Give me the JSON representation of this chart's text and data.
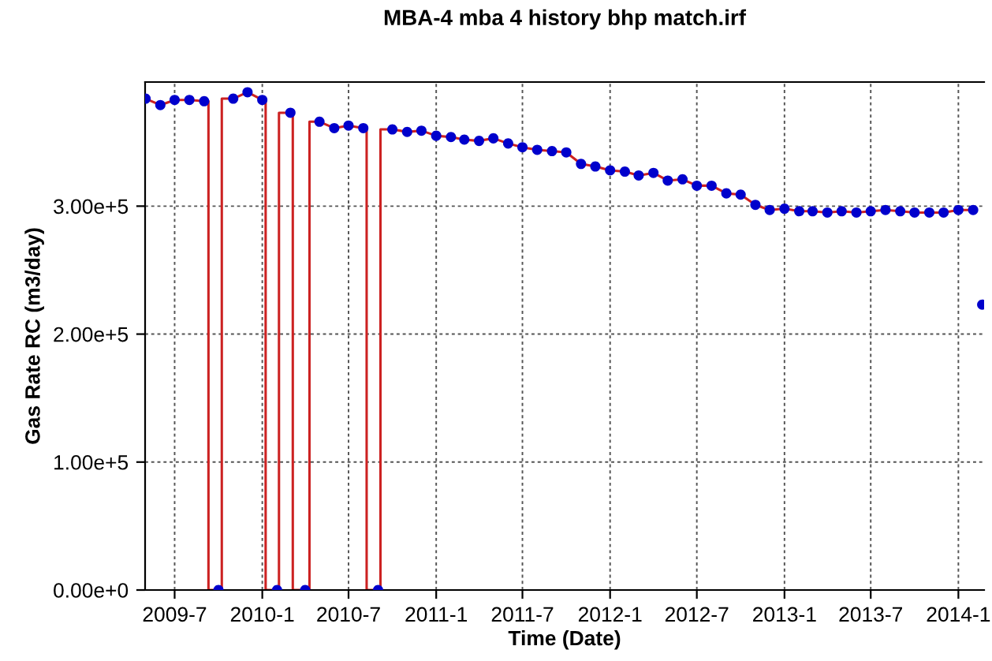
{
  "chart_data": {
    "type": "line",
    "title": "MBA-4 mba 4 history bhp match.irf",
    "xlabel": "Time (Date)",
    "ylabel": "Gas Rate RC (m3/day)",
    "xlim": [
      "2009-04-30",
      "2014-02-24"
    ],
    "ylim": [
      0,
      397000
    ],
    "xticks": [
      {
        "value": "2009-07-01",
        "label": "2009-7"
      },
      {
        "value": "2010-01-01",
        "label": "2010-1"
      },
      {
        "value": "2010-07-01",
        "label": "2010-7"
      },
      {
        "value": "2011-01-01",
        "label": "2011-1"
      },
      {
        "value": "2011-07-01",
        "label": "2011-7"
      },
      {
        "value": "2012-01-01",
        "label": "2012-1"
      },
      {
        "value": "2012-07-01",
        "label": "2012-7"
      },
      {
        "value": "2013-01-01",
        "label": "2013-1"
      },
      {
        "value": "2013-07-01",
        "label": "2013-7"
      },
      {
        "value": "2014-01-01",
        "label": "2014-1"
      }
    ],
    "yticks": [
      {
        "value": 0,
        "label": "0.00e+0"
      },
      {
        "value": 100000,
        "label": "1.00e+5"
      },
      {
        "value": 200000,
        "label": "2.00e+5"
      },
      {
        "value": 300000,
        "label": "3.00e+5"
      }
    ],
    "grid": true,
    "legend": false,
    "series": [
      {
        "type": "line",
        "color": "#cc2222",
        "marker": "none",
        "line_style": "solid",
        "x": [
          "2009-05-01",
          "2009-06-01",
          "2009-07-01",
          "2009-08-01",
          "2009-09-01",
          "2009-09-10",
          "2009-09-10",
          "2009-10-08",
          "2009-10-08",
          "2009-11-01",
          "2009-12-01",
          "2010-01-01",
          "2010-01-08",
          "2010-01-08",
          "2010-02-05",
          "2010-02-05",
          "2010-03-01",
          "2010-03-06",
          "2010-03-06",
          "2010-04-10",
          "2010-04-10",
          "2010-05-01",
          "2010-06-01",
          "2010-07-01",
          "2010-08-01",
          "2010-08-08",
          "2010-08-08",
          "2010-09-06",
          "2010-09-06",
          "2010-10-01",
          "2010-11-01",
          "2010-12-01",
          "2011-01-01",
          "2011-02-01",
          "2011-03-01",
          "2011-04-01",
          "2011-05-01",
          "2011-06-01",
          "2011-07-01",
          "2011-08-01",
          "2011-09-01",
          "2011-10-01",
          "2011-11-01",
          "2011-12-01",
          "2012-01-01",
          "2012-02-01",
          "2012-03-01",
          "2012-04-01",
          "2012-05-01",
          "2012-06-01",
          "2012-07-01",
          "2012-08-01",
          "2012-09-01",
          "2012-10-01",
          "2012-11-01",
          "2012-12-01",
          "2013-01-01",
          "2013-02-01",
          "2013-03-01",
          "2013-04-01",
          "2013-05-01",
          "2013-06-01",
          "2013-07-01",
          "2013-08-01",
          "2013-09-01",
          "2013-10-01",
          "2013-11-01",
          "2013-12-01",
          "2014-01-01",
          "2014-02-01"
        ],
        "values": [
          384000,
          379000,
          383000,
          383000,
          382000,
          382000,
          0,
          0,
          384000,
          384000,
          389000,
          383000,
          383000,
          0,
          0,
          373000,
          373000,
          373000,
          0,
          0,
          366000,
          366000,
          361000,
          363000,
          361000,
          361000,
          0,
          0,
          360000,
          360000,
          358000,
          359000,
          355000,
          354000,
          352000,
          351000,
          353000,
          349000,
          346000,
          344000,
          343000,
          342000,
          333000,
          331000,
          328000,
          327000,
          324000,
          326000,
          320000,
          321000,
          316000,
          316000,
          310000,
          309000,
          301000,
          297000,
          298000,
          296000,
          296000,
          295000,
          296000,
          295000,
          296000,
          297000,
          296000,
          295000,
          295000,
          295000,
          297000,
          297000
        ]
      },
      {
        "type": "scatter",
        "color": "#0000cc",
        "marker": "circle",
        "x": [
          "2009-05-01",
          "2009-06-01",
          "2009-07-01",
          "2009-08-01",
          "2009-09-01",
          "2009-10-01",
          "2009-11-01",
          "2009-12-01",
          "2010-01-01",
          "2010-02-01",
          "2010-03-01",
          "2010-04-01",
          "2010-05-01",
          "2010-06-01",
          "2010-07-01",
          "2010-08-01",
          "2010-09-01",
          "2010-10-01",
          "2010-11-01",
          "2010-12-01",
          "2011-01-01",
          "2011-02-01",
          "2011-03-01",
          "2011-04-01",
          "2011-05-01",
          "2011-06-01",
          "2011-07-01",
          "2011-08-01",
          "2011-09-01",
          "2011-10-01",
          "2011-11-01",
          "2011-12-01",
          "2012-01-01",
          "2012-02-01",
          "2012-03-01",
          "2012-04-01",
          "2012-05-01",
          "2012-06-01",
          "2012-07-01",
          "2012-08-01",
          "2012-09-01",
          "2012-10-01",
          "2012-11-01",
          "2012-12-01",
          "2013-01-01",
          "2013-02-01",
          "2013-03-01",
          "2013-04-01",
          "2013-05-01",
          "2013-06-01",
          "2013-07-01",
          "2013-08-01",
          "2013-09-01",
          "2013-10-01",
          "2013-11-01",
          "2013-12-01",
          "2014-01-01",
          "2014-02-01",
          "2014-02-20"
        ],
        "values": [
          384000,
          379000,
          383000,
          383000,
          382000,
          0,
          384000,
          389000,
          383000,
          0,
          373000,
          0,
          366000,
          361000,
          363000,
          361000,
          0,
          360000,
          358000,
          359000,
          355000,
          354000,
          352000,
          351000,
          353000,
          349000,
          346000,
          344000,
          343000,
          342000,
          333000,
          331000,
          328000,
          327000,
          324000,
          326000,
          320000,
          321000,
          316000,
          316000,
          310000,
          309000,
          301000,
          297000,
          298000,
          296000,
          296000,
          295000,
          296000,
          295000,
          296000,
          297000,
          296000,
          295000,
          295000,
          295000,
          297000,
          297000,
          223000
        ]
      }
    ]
  }
}
